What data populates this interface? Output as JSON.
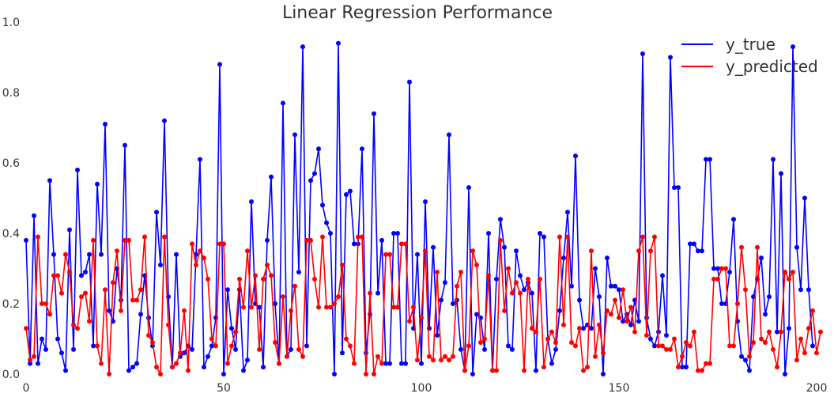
{
  "chart_data": {
    "type": "line",
    "title": "Linear Regression Performance",
    "xlabel": "",
    "ylabel": "",
    "xlim": [
      0,
      200
    ],
    "ylim": [
      0.0,
      1.0
    ],
    "xticks": [
      0,
      50,
      100,
      150,
      200
    ],
    "xtick_labels": [
      "0",
      "50",
      "100",
      "150",
      "200"
    ],
    "yticks": [
      0.0,
      0.2,
      0.4,
      0.6,
      0.8,
      1.0
    ],
    "ytick_labels": [
      "0.0",
      "0.2",
      "0.4",
      "0.6",
      "0.8",
      "1.0"
    ],
    "grid": false,
    "legend_position": "top-right",
    "markers": "circle",
    "series": [
      {
        "name": "y_true",
        "color": "#0000ff",
        "values": [
          0.38,
          0.03,
          0.45,
          0.03,
          0.1,
          0.07,
          0.55,
          0.34,
          0.1,
          0.06,
          0.01,
          0.41,
          0.07,
          0.58,
          0.28,
          0.29,
          0.34,
          0.08,
          0.54,
          0.34,
          0.71,
          0.18,
          0.15,
          0.3,
          0.21,
          0.65,
          0.01,
          0.02,
          0.03,
          0.17,
          0.28,
          0.16,
          0.08,
          0.46,
          0.31,
          0.72,
          0.22,
          0.02,
          0.34,
          0.05,
          0.06,
          0.08,
          0.07,
          0.34,
          0.61,
          0.02,
          0.05,
          0.08,
          0.16,
          0.88,
          0.0,
          0.24,
          0.13,
          0.07,
          0.24,
          0.01,
          0.04,
          0.49,
          0.2,
          0.19,
          0.02,
          0.38,
          0.56,
          0.2,
          0.03,
          0.77,
          0.05,
          0.07,
          0.68,
          0.29,
          0.93,
          0.08,
          0.55,
          0.57,
          0.64,
          0.48,
          0.43,
          0.4,
          0.0,
          0.94,
          0.06,
          0.51,
          0.52,
          0.37,
          0.37,
          0.64,
          0.06,
          0.17,
          0.74,
          0.23,
          0.38,
          0.03,
          0.03,
          0.4,
          0.4,
          0.03,
          0.03,
          0.83,
          0.13,
          0.34,
          0.03,
          0.49,
          0.13,
          0.36,
          0.11,
          0.21,
          0.26,
          0.68,
          0.2,
          0.21,
          0.07,
          0.01,
          0.53,
          0.0,
          0.17,
          0.16,
          0.07,
          0.4,
          0.01,
          0.27,
          0.44,
          0.36,
          0.08,
          0.07,
          0.35,
          0.28,
          0.24,
          0.26,
          0.23,
          0.01,
          0.4,
          0.39,
          0.1,
          0.03,
          0.07,
          0.18,
          0.33,
          0.46,
          0.25,
          0.62,
          0.21,
          0.13,
          0.14,
          0.13,
          0.3,
          0.22,
          0.0,
          0.33,
          0.25,
          0.25,
          0.24,
          0.15,
          0.17,
          0.14,
          0.21,
          0.15,
          0.91,
          0.16,
          0.1,
          0.08,
          0.12,
          0.28,
          0.11,
          0.9,
          0.53,
          0.53,
          0.02,
          0.02,
          0.37,
          0.37,
          0.35,
          0.35,
          0.61,
          0.61,
          0.3,
          0.3,
          0.2,
          0.2,
          0.29,
          0.44,
          0.15,
          0.05,
          0.04,
          0.01,
          0.22,
          0.27,
          0.33,
          0.17,
          0.22,
          0.61,
          0.12,
          0.57,
          0.0,
          0.13,
          0.93,
          0.36,
          0.24,
          0.5,
          0.24,
          0.08
        ]
      },
      {
        "name": "y_predicted",
        "color": "#ff0000",
        "values": [
          0.13,
          0.04,
          0.05,
          0.39,
          0.2,
          0.2,
          0.17,
          0.28,
          0.28,
          0.23,
          0.34,
          0.29,
          0.14,
          0.13,
          0.22,
          0.23,
          0.15,
          0.38,
          0.08,
          0.03,
          0.24,
          0.0,
          0.26,
          0.35,
          0.18,
          0.38,
          0.38,
          0.21,
          0.21,
          0.24,
          0.39,
          0.11,
          0.09,
          0.02,
          0.0,
          0.39,
          0.14,
          0.02,
          0.03,
          0.06,
          0.18,
          0.01,
          0.37,
          0.31,
          0.35,
          0.33,
          0.27,
          0.1,
          0.08,
          0.37,
          0.37,
          0.03,
          0.08,
          0.12,
          0.27,
          0.19,
          0.35,
          0.19,
          0.28,
          0.07,
          0.27,
          0.31,
          0.28,
          0.09,
          0.03,
          0.22,
          0.05,
          0.18,
          0.25,
          0.07,
          0.05,
          0.38,
          0.38,
          0.27,
          0.19,
          0.39,
          0.19,
          0.19,
          0.2,
          0.22,
          0.31,
          0.1,
          0.08,
          0.03,
          0.39,
          0.39,
          0.0,
          0.23,
          0.0,
          0.05,
          0.03,
          0.34,
          0.34,
          0.19,
          0.19,
          0.37,
          0.37,
          0.15,
          0.19,
          0.04,
          0.16,
          0.35,
          0.05,
          0.04,
          0.29,
          0.04,
          0.05,
          0.04,
          0.05,
          0.25,
          0.29,
          0.01,
          0.08,
          0.35,
          0.31,
          0.09,
          0.1,
          0.28,
          0.01,
          0.01,
          0.38,
          0.18,
          0.3,
          0.23,
          0.26,
          0.23,
          0.01,
          0.27,
          0.13,
          0.12,
          0.27,
          0.02,
          0.1,
          0.12,
          0.09,
          0.39,
          0.14,
          0.39,
          0.09,
          0.08,
          0.13,
          0.01,
          0.02,
          0.35,
          0.05,
          0.14,
          0.06,
          0.18,
          0.17,
          0.21,
          0.16,
          0.24,
          0.15,
          0.19,
          0.12,
          0.35,
          0.39,
          0.11,
          0.35,
          0.39,
          0.08,
          0.08,
          0.07,
          0.07,
          0.1,
          0.02,
          0.05,
          0.09,
          0.08,
          0.12,
          0.01,
          0.01,
          0.03,
          0.03,
          0.27,
          0.27,
          0.3,
          0.3,
          0.08,
          0.08,
          0.2,
          0.36,
          0.24,
          0.05,
          0.09,
          0.36,
          0.1,
          0.09,
          0.12,
          0.07,
          0.02,
          0.12,
          0.29,
          0.27,
          0.29,
          0.04,
          0.1,
          0.06,
          0.13,
          0.18,
          0.06,
          0.12
        ]
      }
    ]
  }
}
